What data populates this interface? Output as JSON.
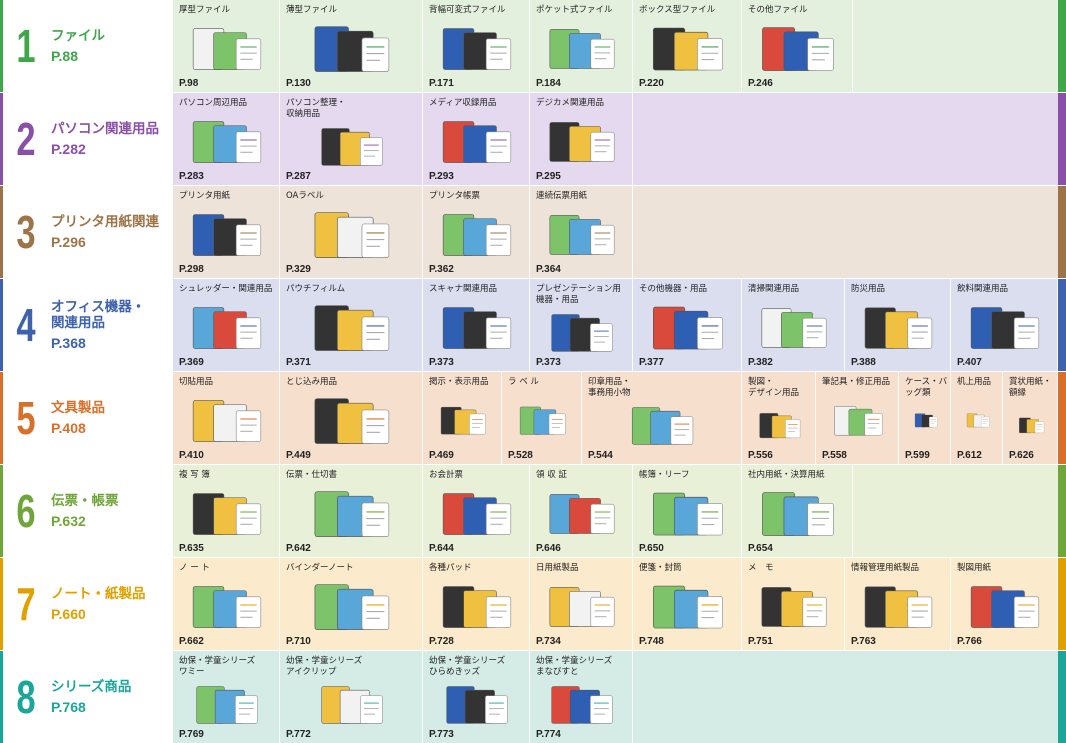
{
  "categories": [
    {
      "num": "1",
      "title": "ファイル",
      "page": "P.88",
      "color": "#3fa64a",
      "bg": "#e3f0dd",
      "items": [
        {
          "label": "厚型ファイル",
          "page": "P.98",
          "icon": "thick-file-icon"
        },
        {
          "label": "薄型ファイル",
          "page": "P.130",
          "icon": "thin-file-icon"
        },
        {
          "label": "背幅可変式ファイル",
          "page": "P.171",
          "icon": "expandable-file-icon"
        },
        {
          "label": "ポケット式ファイル",
          "page": "P.184",
          "icon": "pocket-file-icon"
        },
        {
          "label": "ボックス型ファイル",
          "page": "P.220",
          "icon": "box-file-icon"
        },
        {
          "label": "その他ファイル",
          "page": "P.246",
          "icon": "other-file-icon"
        }
      ]
    },
    {
      "num": "2",
      "title": "パソコン関連用品",
      "page": "P.282",
      "color": "#8a50a8",
      "bg": "#e4d9ee",
      "items": [
        {
          "label": "パソコン周辺用品",
          "page": "P.283",
          "icon": "laptop-icon"
        },
        {
          "label": "パソコン整理・\n収納用品",
          "page": "P.287",
          "icon": "pc-rack-icon"
        },
        {
          "label": "メディア収録用品",
          "page": "P.293",
          "icon": "cd-case-icon"
        },
        {
          "label": "デジカメ関連用品",
          "page": "P.295",
          "icon": "camera-paper-icon"
        }
      ]
    },
    {
      "num": "3",
      "title": "プリンタ用紙関連",
      "page": "P.296",
      "color": "#9c7448",
      "bg": "#eee3d8",
      "items": [
        {
          "label": "プリンタ用紙",
          "page": "P.298",
          "icon": "printer-paper-icon"
        },
        {
          "label": "OAラベル",
          "page": "P.329",
          "icon": "oa-label-icon"
        },
        {
          "label": "プリンタ帳票",
          "page": "P.362",
          "icon": "printer-form-icon"
        },
        {
          "label": "連続伝票用紙",
          "page": "P.364",
          "icon": "continuous-form-icon"
        }
      ]
    },
    {
      "num": "4",
      "title": "オフィス機器・\n関連用品",
      "page": "P.368",
      "color": "#3f62ae",
      "bg": "#dadeef",
      "items": [
        {
          "label": "シュレッダー・関連用品",
          "page": "P.369",
          "icon": "shredder-icon"
        },
        {
          "label": "パウチフィルム",
          "page": "P.371",
          "icon": "pouch-film-icon"
        },
        {
          "label": "スキャナ関連用品",
          "page": "P.373",
          "icon": "scanner-icon"
        },
        {
          "label": "プレゼンテーション用\n機器・用品",
          "page": "P.373",
          "icon": "projector-screen-icon"
        },
        {
          "label": "その他機器・用品",
          "page": "P.377",
          "icon": "numbering-machine-icon"
        },
        {
          "label": "清掃関連用品",
          "page": "P.382",
          "icon": "cleaning-icon"
        },
        {
          "label": "防災用品",
          "page": "P.388",
          "icon": "emergency-kit-icon"
        },
        {
          "label": "飲料関連用品",
          "page": "P.407",
          "icon": "paper-cup-icon"
        }
      ]
    },
    {
      "num": "5",
      "title": "文具製品",
      "page": "P.408",
      "color": "#d9702a",
      "bg": "#f6dfcd",
      "items": [
        {
          "label": "切貼用品",
          "page": "P.410",
          "icon": "scissors-icon"
        },
        {
          "label": "とじ込み用品",
          "page": "P.449",
          "icon": "stapler-icon"
        },
        {
          "label": "掲示・表示用品",
          "page": "P.469",
          "icon": "marker-icon"
        },
        {
          "label": "ラ ベ ル",
          "page": "P.528",
          "icon": "label-sheet-icon"
        },
        {
          "label": "印章用品・\n事務用小物",
          "page": "P.544",
          "icon": "stamp-icon"
        },
        {
          "label": "製図・\nデザイン用品",
          "page": "P.556",
          "icon": "drafting-icon"
        },
        {
          "label": "筆記具・修正用品",
          "page": "P.558",
          "icon": "pen-case-icon"
        },
        {
          "label": "ケース・バッグ類",
          "page": "P.599",
          "icon": "bag-icon"
        },
        {
          "label": "机上用品",
          "page": "P.612",
          "icon": "desk-mat-icon"
        },
        {
          "label": "賞状用紙・\n額縁",
          "page": "P.626",
          "icon": "frame-icon"
        }
      ]
    },
    {
      "num": "6",
      "title": "伝票・帳票",
      "page": "P.632",
      "color": "#6fa63a",
      "bg": "#e8f0d8",
      "items": [
        {
          "label": "複 写 簿",
          "page": "P.635",
          "icon": "copy-book-icon"
        },
        {
          "label": "伝票・仕切書",
          "page": "P.642",
          "icon": "slip-icon"
        },
        {
          "label": "お会計票",
          "page": "P.644",
          "icon": "bill-icon"
        },
        {
          "label": "領 収 証",
          "page": "P.646",
          "icon": "receipt-icon"
        },
        {
          "label": "帳簿・リーフ",
          "page": "P.650",
          "icon": "ledger-icon"
        },
        {
          "label": "社内用紙・決算用紙",
          "page": "P.654",
          "icon": "office-form-icon"
        }
      ]
    },
    {
      "num": "7",
      "title": "ノート・紙製品",
      "page": "P.660",
      "color": "#e0a000",
      "bg": "#fbeacb",
      "items": [
        {
          "label": "ノ ー ト",
          "page": "P.662",
          "icon": "notebook-icon"
        },
        {
          "label": "バインダーノート",
          "page": "P.710",
          "icon": "binder-icon"
        },
        {
          "label": "各種パッド",
          "page": "P.728",
          "icon": "pad-icon"
        },
        {
          "label": "日用紙製品",
          "page": "P.734",
          "icon": "daily-paper-icon"
        },
        {
          "label": "便箋・封筒",
          "page": "P.748",
          "icon": "letter-icon"
        },
        {
          "label": "メ　モ",
          "page": "P.751",
          "icon": "memo-icon"
        },
        {
          "label": "情報管理用紙製品",
          "page": "P.763",
          "icon": "info-binder-icon"
        },
        {
          "label": "製図用紙",
          "page": "P.766",
          "icon": "drafting-paper-icon"
        }
      ]
    },
    {
      "num": "8",
      "title": "シリーズ商品",
      "page": "P.768",
      "color": "#1aa79a",
      "bg": "#d4ebe6",
      "items": [
        {
          "label": "幼保・学童シリーズ\nワミー",
          "page": "P.769",
          "icon": "wammy-toy-icon"
        },
        {
          "label": "幼保・学童シリーズ\nアイクリップ",
          "page": "P.772",
          "icon": "iclip-icon"
        },
        {
          "label": "幼保・学童シリーズ\nひらめきッズ",
          "page": "P.773",
          "icon": "hiramekids-icon"
        },
        {
          "label": "幼保・学童シリーズ\nまなびすと",
          "page": "P.774",
          "icon": "ruler-set-icon"
        }
      ]
    }
  ]
}
